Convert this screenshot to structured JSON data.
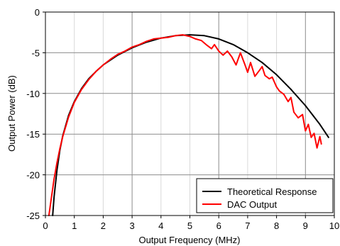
{
  "chart_data": {
    "type": "line",
    "title": "",
    "xlabel": "Output Frequency (MHz)",
    "ylabel": "Output Power (dB)",
    "xlim": [
      0,
      10
    ],
    "ylim": [
      -25,
      0
    ],
    "x_ticks": [
      0,
      1,
      2,
      3,
      4,
      5,
      6,
      7,
      8,
      9,
      10
    ],
    "y_ticks": [
      0,
      -5,
      -10,
      -15,
      -20,
      -25
    ],
    "x_tick_labels": [
      "0",
      "1",
      "2",
      "3",
      "4",
      "5",
      "6",
      "7",
      "8",
      "9",
      "10"
    ],
    "y_tick_labels": [
      "0",
      "-5",
      "-10",
      "-15",
      "-20",
      "-25"
    ],
    "major_grid_x": [
      3,
      6,
      9
    ],
    "minor_grid_x": [
      1,
      2,
      4,
      5,
      7,
      8
    ],
    "legend_position": "bottom-right",
    "series": [
      {
        "name": "Theoretical Response",
        "color": "#000000",
        "x": [
          0.25,
          0.3,
          0.4,
          0.5,
          0.6,
          0.8,
          1.0,
          1.25,
          1.5,
          1.75,
          2.0,
          2.5,
          3.0,
          3.5,
          4.0,
          4.5,
          5.0,
          5.5,
          6.0,
          6.5,
          7.0,
          7.5,
          8.0,
          8.5,
          9.0,
          9.5,
          9.8
        ],
        "y": [
          -25.0,
          -22.7,
          -19.4,
          -17.0,
          -15.2,
          -12.7,
          -11.0,
          -9.4,
          -8.2,
          -7.3,
          -6.5,
          -5.3,
          -4.4,
          -3.7,
          -3.2,
          -2.9,
          -2.8,
          -2.9,
          -3.3,
          -4.0,
          -5.0,
          -6.2,
          -7.7,
          -9.5,
          -11.5,
          -13.8,
          -15.4
        ]
      },
      {
        "name": "DAC Output",
        "color": "#ff0000",
        "x": [
          0.12,
          0.2,
          0.3,
          0.4,
          0.5,
          0.6,
          0.8,
          1.0,
          1.25,
          1.5,
          1.75,
          2.0,
          2.25,
          2.5,
          2.75,
          3.0,
          3.25,
          3.5,
          3.75,
          4.0,
          4.25,
          4.5,
          4.75,
          5.0,
          5.2,
          5.4,
          5.6,
          5.75,
          5.85,
          6.0,
          6.15,
          6.3,
          6.45,
          6.6,
          6.75,
          6.9,
          7.0,
          7.1,
          7.25,
          7.4,
          7.5,
          7.6,
          7.75,
          7.85,
          8.0,
          8.1,
          8.25,
          8.4,
          8.5,
          8.6,
          8.75,
          8.9,
          9.0,
          9.1,
          9.2,
          9.3,
          9.4,
          9.5,
          9.55
        ],
        "y": [
          -25.0,
          -23.0,
          -20.5,
          -18.5,
          -16.8,
          -15.3,
          -12.9,
          -11.1,
          -9.5,
          -8.3,
          -7.3,
          -6.5,
          -5.8,
          -5.2,
          -4.8,
          -4.3,
          -4.0,
          -3.6,
          -3.3,
          -3.2,
          -3.1,
          -2.9,
          -2.8,
          -3.0,
          -3.3,
          -3.5,
          -4.1,
          -4.5,
          -4.0,
          -4.8,
          -5.3,
          -4.8,
          -5.5,
          -6.5,
          -5.0,
          -6.4,
          -7.4,
          -6.2,
          -7.9,
          -7.2,
          -6.7,
          -7.8,
          -8.2,
          -8.0,
          -9.2,
          -9.7,
          -10.1,
          -11.0,
          -10.5,
          -12.3,
          -13.0,
          -12.6,
          -14.6,
          -13.8,
          -15.4,
          -14.9,
          -16.7,
          -15.3,
          -16.2
        ]
      }
    ]
  }
}
